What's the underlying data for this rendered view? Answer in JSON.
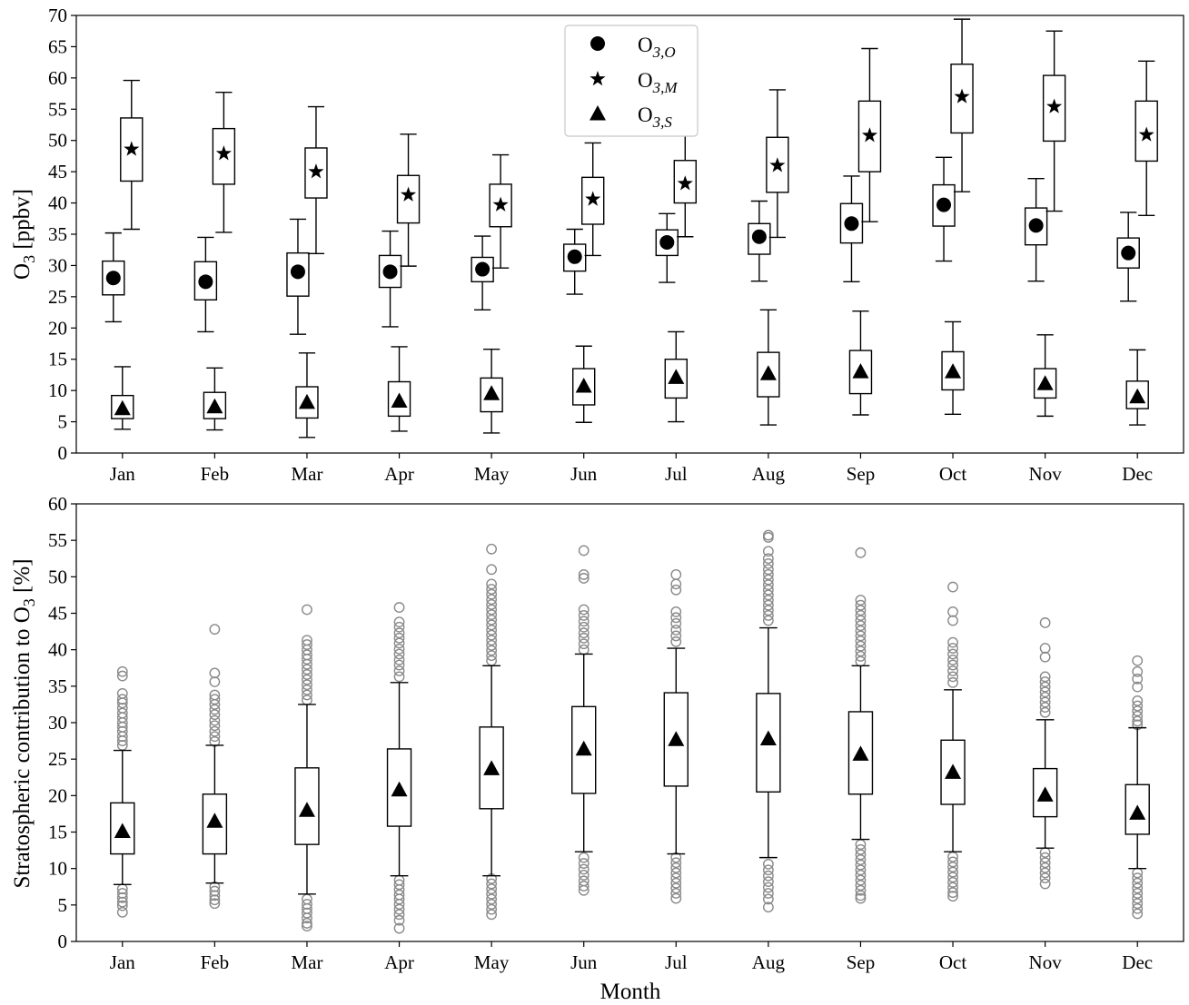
{
  "chart_data": [
    {
      "type": "box",
      "ylabel": "O3 [ppbv]",
      "ylabel_main": "O",
      "ylabel_sub": "3",
      "ylabel_unit": " [ppbv]",
      "xlabel": "",
      "ylim": [
        0,
        70
      ],
      "yticks": [
        0,
        5,
        10,
        15,
        20,
        25,
        30,
        35,
        40,
        45,
        50,
        55,
        60,
        65,
        70
      ],
      "categories": [
        "Jan",
        "Feb",
        "Mar",
        "Apr",
        "May",
        "Jun",
        "Jul",
        "Aug",
        "Sep",
        "Oct",
        "Nov",
        "Dec"
      ],
      "legend_position": "upper-center",
      "series": [
        {
          "name": "O3,O",
          "name_main": "O",
          "name_sub": "3,O",
          "marker": "circle",
          "mean": [
            28.0,
            27.4,
            29.0,
            29.0,
            29.4,
            31.4,
            33.7,
            34.6,
            36.7,
            39.7,
            36.4,
            32.0
          ],
          "whisker_low": [
            21.0,
            19.4,
            19.0,
            20.2,
            22.9,
            25.4,
            27.3,
            27.5,
            27.4,
            30.7,
            27.5,
            24.3
          ],
          "q1": [
            25.3,
            24.5,
            25.1,
            26.5,
            27.4,
            29.1,
            31.6,
            31.8,
            33.6,
            36.3,
            33.3,
            29.6
          ],
          "q3": [
            30.7,
            30.6,
            32.0,
            31.6,
            31.3,
            33.4,
            35.7,
            36.7,
            39.9,
            42.9,
            39.2,
            34.4
          ],
          "whisker_high": [
            35.2,
            34.5,
            37.4,
            35.5,
            34.7,
            35.8,
            38.3,
            40.3,
            44.3,
            47.3,
            43.9,
            38.5
          ]
        },
        {
          "name": "O3,M",
          "name_main": "O",
          "name_sub": "3,M",
          "marker": "star",
          "mean": [
            48.6,
            47.9,
            45.0,
            41.3,
            39.7,
            40.6,
            43.1,
            46.0,
            50.8,
            57.0,
            55.4,
            50.9
          ],
          "whisker_low": [
            35.8,
            35.3,
            31.9,
            29.9,
            29.6,
            31.6,
            34.6,
            34.5,
            37.0,
            41.8,
            38.7,
            38.0
          ],
          "q1": [
            43.5,
            43.0,
            40.8,
            36.8,
            36.2,
            36.6,
            40.0,
            41.7,
            45.0,
            51.2,
            49.9,
            46.7
          ],
          "q3": [
            53.6,
            51.9,
            48.8,
            44.4,
            43.0,
            44.1,
            46.8,
            50.5,
            56.3,
            62.2,
            60.4,
            56.3
          ],
          "whisker_high": [
            59.6,
            57.7,
            55.4,
            51.0,
            47.7,
            49.6,
            52.9,
            58.1,
            64.7,
            69.4,
            67.5,
            62.7
          ]
        },
        {
          "name": "O3,S",
          "name_main": "O",
          "name_sub": "3,S",
          "marker": "triangle",
          "mean": [
            7.0,
            7.3,
            8.0,
            8.2,
            9.4,
            10.6,
            12.0,
            12.6,
            12.9,
            12.9,
            11.0,
            8.9
          ],
          "whisker_low": [
            3.8,
            3.7,
            2.5,
            3.5,
            3.2,
            4.9,
            5.0,
            4.5,
            6.1,
            6.2,
            5.9,
            4.5
          ],
          "q1": [
            5.5,
            5.5,
            5.6,
            5.9,
            6.6,
            7.7,
            8.8,
            9.0,
            9.5,
            10.1,
            8.8,
            7.1
          ],
          "q3": [
            9.2,
            9.7,
            10.6,
            11.4,
            12.0,
            13.5,
            15.0,
            16.1,
            16.4,
            16.2,
            13.5,
            11.5
          ],
          "whisker_high": [
            13.8,
            13.6,
            16.0,
            17.0,
            16.6,
            17.1,
            19.4,
            22.9,
            22.7,
            21.0,
            18.9,
            16.5
          ]
        }
      ]
    },
    {
      "type": "box",
      "ylabel": "Stratospheric contribution to O3 [%]",
      "ylabel_main": "Stratospheric contribution to O",
      "ylabel_sub": "3",
      "ylabel_unit": " [%]",
      "xlabel": "Month",
      "ylim": [
        0,
        60
      ],
      "yticks": [
        0,
        5,
        10,
        15,
        20,
        25,
        30,
        35,
        40,
        45,
        50,
        55,
        60
      ],
      "categories": [
        "Jan",
        "Feb",
        "Mar",
        "Apr",
        "May",
        "Jun",
        "Jul",
        "Aug",
        "Sep",
        "Oct",
        "Nov",
        "Dec"
      ],
      "series": [
        {
          "name": "",
          "marker": "triangle",
          "mean": [
            15.0,
            16.4,
            17.9,
            20.7,
            23.6,
            26.3,
            27.6,
            27.7,
            25.6,
            23.1,
            20.0,
            17.5
          ],
          "whisker_low": [
            7.8,
            8.0,
            6.5,
            9.0,
            9.0,
            12.3,
            12.0,
            11.5,
            14.0,
            12.3,
            12.8,
            10.0
          ],
          "q1": [
            12.0,
            12.0,
            13.3,
            15.8,
            18.2,
            20.3,
            21.3,
            20.5,
            20.2,
            18.8,
            17.1,
            14.7
          ],
          "q3": [
            19.0,
            20.2,
            23.8,
            26.4,
            29.4,
            32.2,
            34.1,
            34.0,
            31.5,
            27.6,
            23.7,
            21.5
          ],
          "whisker_high": [
            26.2,
            26.9,
            32.5,
            35.5,
            37.8,
            39.4,
            40.2,
            43.0,
            37.8,
            34.5,
            30.4,
            29.3
          ],
          "fliers": [
            [
              37,
              36.4,
              34,
              33.2,
              32.7,
              32,
              31.3,
              30.7,
              30,
              29.4,
              28.8,
              28.1,
              27.5,
              26.9,
              7.2,
              6.6,
              6,
              5.4,
              4.9,
              4
            ],
            [
              42.8,
              36.8,
              35.6,
              33.8,
              33.2,
              32.5,
              31.8,
              31.1,
              30.3,
              29.6,
              28.8,
              28.1,
              27.4,
              7.5,
              6.9,
              6.3,
              5.7,
              5.2
            ],
            [
              45.5,
              41.3,
              40.7,
              40,
              39.3,
              38.7,
              38,
              37.3,
              36.6,
              35.9,
              35.2,
              34.5,
              33.8,
              33.1,
              5.8,
              5.1,
              4.5,
              3.9,
              3.2,
              2.5,
              2.1
            ],
            [
              45.8,
              43.8,
              43.1,
              42.3,
              41.6,
              40.9,
              40.1,
              39.4,
              38.6,
              37.9,
              37.1,
              36.3,
              8.4,
              7.8,
              7.1,
              6.4,
              5.8,
              5.1,
              4.4,
              3.7,
              2.9,
              1.8
            ],
            [
              53.8,
              51,
              49,
              48.3,
              47.6,
              46.9,
              46.2,
              45.5,
              44.8,
              44.1,
              43.4,
              42.7,
              42,
              41.3,
              40.6,
              39.9,
              39.2,
              38.5,
              8.6,
              7.9,
              7.2,
              6.5,
              5.8,
              5.1,
              4.4,
              3.7
            ],
            [
              53.6,
              50.3,
              49.8,
              45.5,
              44.7,
              43.9,
              43.1,
              42.3,
              41.6,
              40.8,
              40,
              11.5,
              10.7,
              9.9,
              9.1,
              8.3,
              7.6,
              7
            ],
            [
              50.3,
              49,
              48.2,
              45.2,
              44.4,
              43.6,
              42.7,
              41.9,
              41.1,
              11.5,
              10.8,
              10.1,
              9.4,
              8.7,
              8,
              7.3,
              6.6,
              5.9
            ],
            [
              55.7,
              55.4,
              53.5,
              52.5,
              51.8,
              51,
              50.3,
              49.6,
              48.9,
              48.2,
              47.5,
              46.8,
              46.1,
              45.4,
              44.7,
              44,
              10.6,
              9.8,
              9,
              8.2,
              7.4,
              6.6,
              5.8,
              4.7
            ],
            [
              53.3,
              46.8,
              46.1,
              45.4,
              44.7,
              44,
              43.3,
              42.6,
              41.9,
              41.2,
              40.5,
              39.8,
              39.1,
              38.4,
              13.3,
              12.6,
              11.9,
              11.2,
              10.5,
              9.8,
              9.1,
              8.4,
              7.7,
              7,
              6.3,
              5.9
            ],
            [
              48.6,
              45.2,
              44,
              41,
              40.2,
              39.4,
              38.6,
              37.9,
              37.1,
              36.3,
              35.5,
              11.6,
              10.9,
              10.2,
              9.5,
              8.8,
              8.1,
              7.4,
              6.7,
              6.2
            ],
            [
              43.7,
              40.2,
              39,
              36.3,
              35.6,
              34.9,
              34.2,
              33.5,
              32.8,
              32.1,
              31.4,
              12.2,
              11.5,
              10.8,
              10.1,
              9.4,
              8.7,
              7.9
            ],
            [
              38.5,
              37,
              36,
              34.9,
              33,
              32.3,
              31.6,
              30.9,
              30.2,
              29.7,
              9.4,
              8.7,
              8,
              7.3,
              6.6,
              5.9,
              5.2,
              4.5,
              3.8
            ]
          ]
        }
      ]
    }
  ]
}
